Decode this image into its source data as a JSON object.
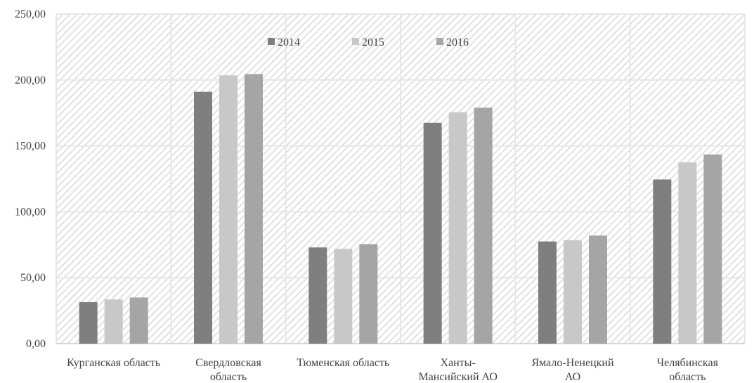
{
  "chart_data": {
    "type": "bar",
    "title": "",
    "xlabel": "",
    "ylabel": "",
    "ylim": [
      0,
      250
    ],
    "yticks": [
      "0,00",
      "50,00",
      "100,00",
      "150,00",
      "200,00",
      "250,00"
    ],
    "categories": [
      [
        "Курганская область"
      ],
      [
        "Свердловская",
        "область"
      ],
      [
        "Тюменская область"
      ],
      [
        "Ханты-",
        "Мансийский АО"
      ],
      [
        "Ямало-Ненецкий",
        "АО"
      ],
      [
        "Челябинская",
        "область"
      ]
    ],
    "series": [
      {
        "name": "2014",
        "color": "#7f7f7f",
        "values": [
          31.5,
          191.0,
          73.0,
          167.5,
          77.5,
          124.5
        ]
      },
      {
        "name": "2015",
        "color": "#c8c8c8",
        "values": [
          33.5,
          203.5,
          72.0,
          175.5,
          78.5,
          137.5
        ]
      },
      {
        "name": "2016",
        "color": "#a5a5a5",
        "values": [
          35.0,
          204.5,
          75.5,
          179.0,
          82.0,
          143.5
        ]
      }
    ],
    "legend_position": "top-center",
    "background": "diagonal-hatch",
    "grid": true
  }
}
